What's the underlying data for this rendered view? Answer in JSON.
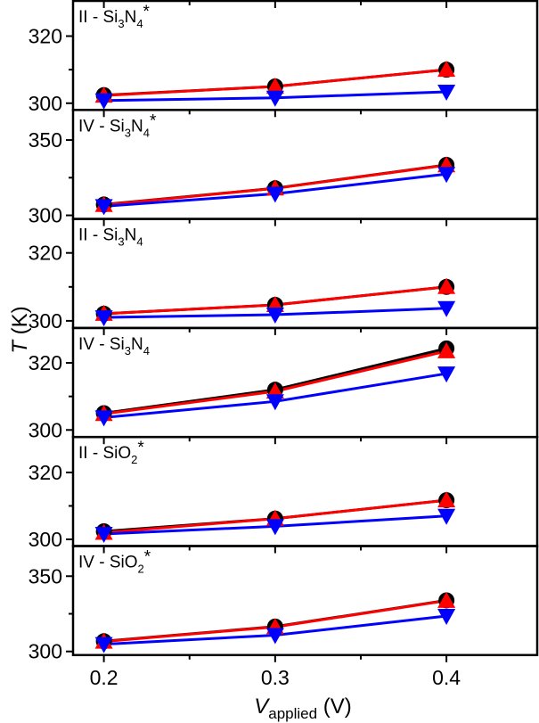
{
  "chart_data": {
    "type": "line",
    "layout": "6 vertically stacked panels sharing x axis",
    "xlabel": {
      "main": "V",
      "sub": "applied",
      "unit": " (V)"
    },
    "ylabel": {
      "main": "T",
      "unit": " (K)"
    },
    "x": [
      0.2,
      0.3,
      0.4
    ],
    "xticks": [
      "0.2",
      "0.3",
      "0.4"
    ],
    "xlim": [
      0.182,
      0.453
    ],
    "grid": false,
    "panels": [
      {
        "label": [
          {
            "t": "II - Si"
          },
          {
            "sub": "3"
          },
          {
            "t": "N"
          },
          {
            "sub": "4"
          },
          {
            "sup": "*"
          }
        ],
        "ylim": [
          298,
          330.5
        ],
        "yticks": [
          "300",
          "320"
        ],
        "ytick_values": [
          300,
          320
        ],
        "yminor": [
          310
        ],
        "series": [
          {
            "marker": "circle",
            "color": "#000000",
            "values": [
              302.4,
              305.0,
              310.0
            ]
          },
          {
            "marker": "triangle-up",
            "color": "#ff0000",
            "values": [
              302.3,
              305.0,
              310.0
            ]
          },
          {
            "marker": "triangle-down",
            "color": "#0000ff",
            "values": [
              300.8,
              301.6,
              303.4
            ]
          }
        ]
      },
      {
        "label": [
          {
            "t": "IV - Si"
          },
          {
            "sub": "3"
          },
          {
            "t": "N"
          },
          {
            "sub": "4"
          },
          {
            "sup": "*"
          }
        ],
        "ylim": [
          297.6,
          370
        ],
        "yticks": [
          "300",
          "350"
        ],
        "ytick_values": [
          300,
          350
        ],
        "yminor": [
          325
        ],
        "series": [
          {
            "marker": "circle",
            "color": "#000000",
            "values": [
              307.2,
              318.0,
              333.5
            ]
          },
          {
            "marker": "triangle-up",
            "color": "#ff0000",
            "values": [
              307.0,
              317.9,
              333.3
            ]
          },
          {
            "marker": "triangle-down",
            "color": "#0000ff",
            "values": [
              306.0,
              314.3,
              327.4
            ]
          }
        ]
      },
      {
        "label": [
          {
            "t": "II - Si"
          },
          {
            "sub": "3"
          },
          {
            "t": "N"
          },
          {
            "sub": "4"
          }
        ],
        "ylim": [
          297.9,
          330
        ],
        "yticks": [
          "300",
          "320"
        ],
        "ytick_values": [
          300,
          320
        ],
        "yminor": [
          310
        ],
        "series": [
          {
            "marker": "circle",
            "color": "#000000",
            "values": [
              302.1,
              304.7,
              310.0
            ]
          },
          {
            "marker": "triangle-up",
            "color": "#ff0000",
            "values": [
              302.1,
              304.7,
              310.0
            ]
          },
          {
            "marker": "triangle-down",
            "color": "#0000ff",
            "values": [
              301.0,
              301.8,
              303.7
            ]
          }
        ]
      },
      {
        "label": [
          {
            "t": "IV - Si"
          },
          {
            "sub": "3"
          },
          {
            "t": "N"
          },
          {
            "sub": "4"
          }
        ],
        "ylim": [
          297.9,
          330.4
        ],
        "yticks": [
          "300",
          "320"
        ],
        "ytick_values": [
          300,
          320
        ],
        "yminor": [
          310
        ],
        "series": [
          {
            "marker": "circle",
            "color": "#000000",
            "values": [
              305.0,
              312.0,
              324.3
            ]
          },
          {
            "marker": "triangle-up",
            "color": "#ff0000",
            "values": [
              304.8,
              311.5,
              323.5
            ]
          },
          {
            "marker": "triangle-down",
            "color": "#0000ff",
            "values": [
              303.7,
              308.5,
              316.8
            ]
          }
        ]
      },
      {
        "label": [
          {
            "t": "II - SiO"
          },
          {
            "sub": "2"
          },
          {
            "sup": "*"
          }
        ],
        "ylim": [
          298,
          330.6
        ],
        "yticks": [
          "300",
          "320"
        ],
        "ytick_values": [
          300,
          320
        ],
        "yminor": [
          310
        ],
        "series": [
          {
            "marker": "circle",
            "color": "#000000",
            "values": [
              302.4,
              306.2,
              311.7
            ]
          },
          {
            "marker": "triangle-up",
            "color": "#ff0000",
            "values": [
              302.0,
              306.2,
              311.7
            ]
          },
          {
            "marker": "triangle-down",
            "color": "#0000ff",
            "values": [
              301.6,
              303.9,
              307.0
            ]
          }
        ]
      },
      {
        "label": [
          {
            "t": "IV - SiO"
          },
          {
            "sub": "2"
          },
          {
            "sup": "*"
          }
        ],
        "ylim": [
          297.6,
          370
        ],
        "yticks": [
          "300",
          "350"
        ],
        "ytick_values": [
          300,
          350
        ],
        "yminor": [
          325
        ],
        "series": [
          {
            "marker": "circle",
            "color": "#000000",
            "values": [
              306.8,
              316.5,
              333.9
            ]
          },
          {
            "marker": "triangle-up",
            "color": "#ff0000",
            "values": [
              306.6,
              316.3,
              333.7
            ]
          },
          {
            "marker": "triangle-down",
            "color": "#0000ff",
            "values": [
              304.8,
              310.8,
              323.5
            ]
          }
        ]
      }
    ]
  }
}
